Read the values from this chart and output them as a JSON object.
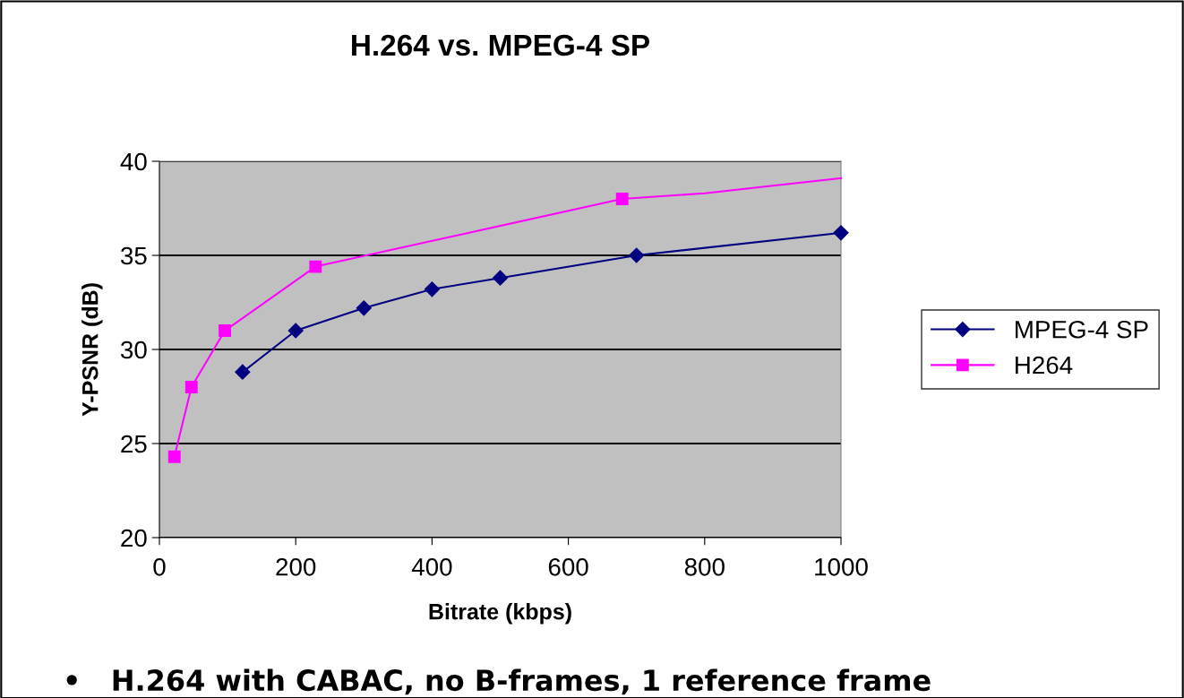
{
  "chart_data": {
    "type": "line",
    "title": "H.264 vs. MPEG-4 SP",
    "xlabel": "Bitrate (kbps)",
    "ylabel": "Y-PSNR (dB)",
    "series": [
      {
        "name": "MPEG-4 SP",
        "color": "#000080",
        "marker": "diamond",
        "x": [
          122,
          200,
          300,
          400,
          500,
          700,
          1000
        ],
        "values": [
          28.8,
          31.0,
          32.2,
          33.2,
          33.8,
          35.0,
          36.2
        ]
      },
      {
        "name": "H264",
        "color": "#ff00ff",
        "marker": "square",
        "x": [
          22,
          47,
          96,
          229,
          679
        ],
        "values": [
          24.3,
          28.0,
          31.0,
          34.4,
          38.0
        ]
      },
      {
        "color": "#ff00ff",
        "marker": "none",
        "x": [
          679,
          800,
          900,
          1000
        ],
        "values": [
          38.0,
          38.3,
          38.7,
          39.1
        ]
      }
    ],
    "xlim": [
      0,
      1000
    ],
    "xticks": [
      0,
      200,
      400,
      600,
      800,
      1000
    ],
    "ylim": [
      20,
      40
    ],
    "yticks": [
      20,
      25,
      30,
      35,
      40
    ],
    "grid": "y",
    "legend": "right",
    "annotations": [
      "•   H.264 with CABAC, no B-frames, 1 reference frame"
    ]
  }
}
